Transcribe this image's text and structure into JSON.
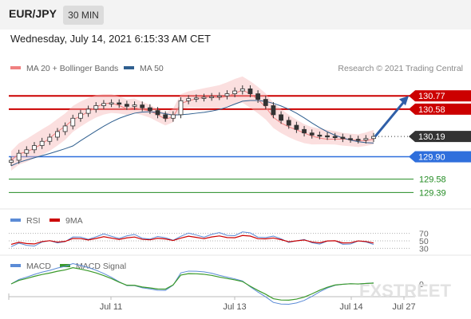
{
  "header": {
    "symbol": "EUR/JPY",
    "timeframe": "30 MIN",
    "datetime": "Wednesday, July 14, 2021 6:15:33 AM CET"
  },
  "legend": {
    "ma20": "MA 20 + Bollinger Bands",
    "ma20_color": "#f08080",
    "ma50": "MA 50",
    "ma50_color": "#2f5f8f",
    "copyright": "Research © 2021 Trading Central"
  },
  "rsi_legend": {
    "rsi": "RSI",
    "rsi_color": "#5b8bd6",
    "ma": "9MA",
    "ma_color": "#cc0000"
  },
  "macd_legend": {
    "macd": "MACD",
    "macd_color": "#5b8bd6",
    "signal": "MACD Signal",
    "signal_color": "#3a9a2a"
  },
  "watermark": "FXSTREET",
  "chart_data": {
    "type": "line",
    "ylim": [
      129.2,
      131.0
    ],
    "price_series": [
      129.85,
      129.95,
      130.0,
      130.06,
      130.12,
      130.18,
      130.26,
      130.34,
      130.45,
      130.52,
      130.58,
      130.63,
      130.66,
      130.67,
      130.65,
      130.62,
      130.64,
      130.6,
      130.56,
      130.5,
      130.45,
      130.5,
      130.7,
      130.73,
      130.74,
      130.75,
      130.76,
      130.77,
      130.8,
      130.84,
      130.87,
      130.8,
      130.72,
      130.63,
      130.5,
      130.42,
      130.35,
      130.29,
      130.24,
      130.21,
      130.2,
      130.19,
      130.18,
      130.16,
      130.15,
      130.14,
      130.16,
      130.19
    ],
    "levels": [
      {
        "value": 130.77,
        "label": "130.77",
        "color": "#cc0000",
        "style": "resistance"
      },
      {
        "value": 130.58,
        "label": "130.58",
        "color": "#cc0000",
        "style": "resistance"
      },
      {
        "value": 130.19,
        "label": "130.19",
        "color": "#333333",
        "style": "last"
      },
      {
        "value": 129.9,
        "label": "129.90",
        "color": "#2f6fdc",
        "style": "support"
      },
      {
        "value": 129.58,
        "label": "129.58",
        "color": "#228b22",
        "style": "target"
      },
      {
        "value": 129.39,
        "label": "129.39",
        "color": "#228b22",
        "style": "target"
      }
    ],
    "forecast_target": 130.77,
    "x_tick_labels": [
      "Jul 11",
      "Jul 13",
      "Jul 14",
      "Jul 27"
    ],
    "rsi": {
      "ticks": [
        "70",
        "50",
        "30"
      ],
      "ylim": [
        20,
        80
      ]
    },
    "macd": {
      "ticks": [
        "0"
      ]
    }
  }
}
